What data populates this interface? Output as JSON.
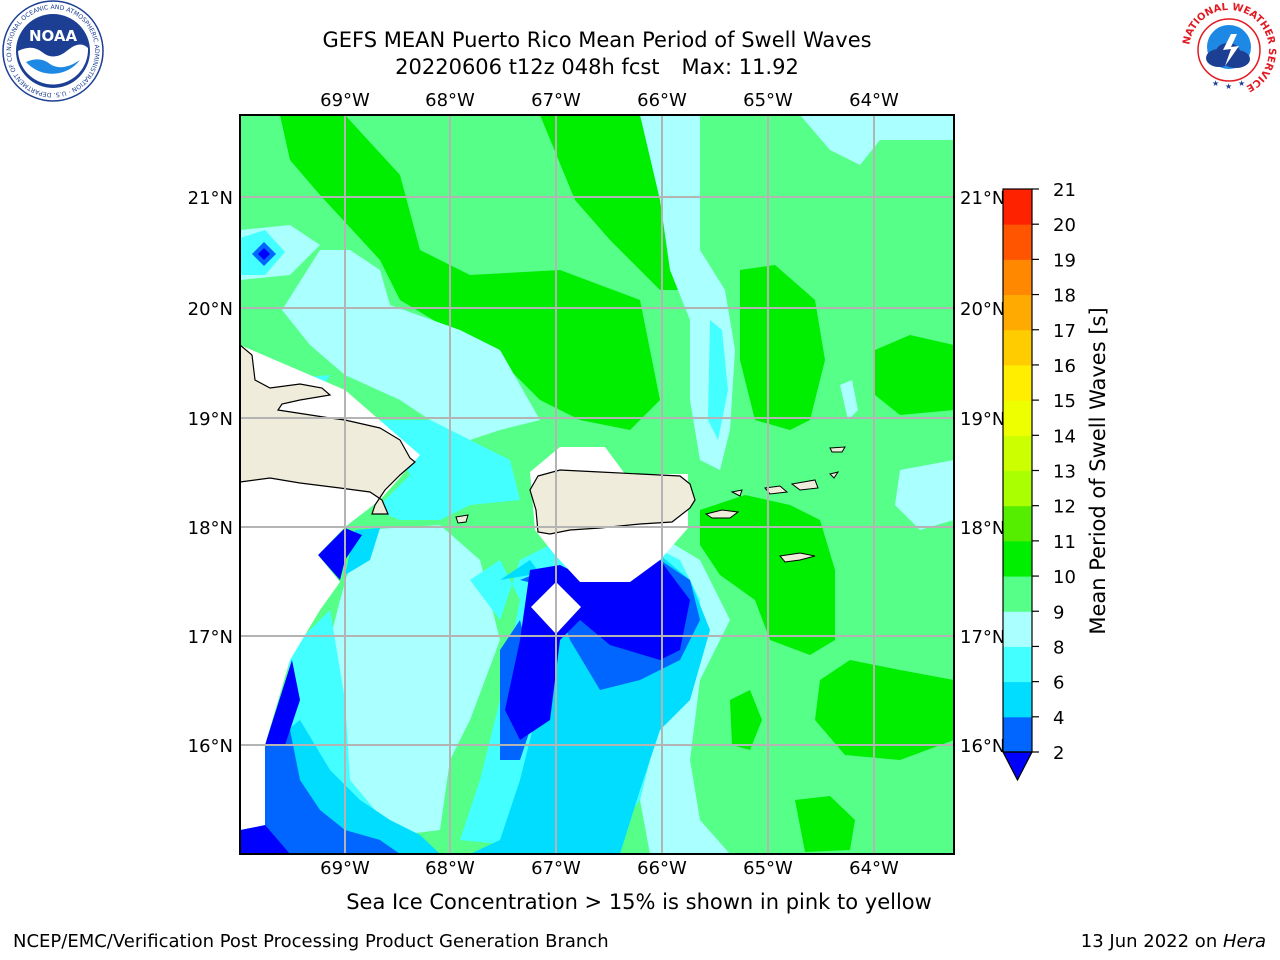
{
  "title": {
    "line1": "GEFS MEAN Puerto Rico Mean Period of Swell Waves",
    "date": "20220606 t12z 048h fcst",
    "max": "Max: 11.92"
  },
  "caption": "Sea Ice Concentration > 15% is shown in pink to yellow",
  "footer": {
    "left": "NCEP/EMC/Verification Post Processing Product Generation Branch",
    "date": "13 Jun 2022 on ",
    "host": "Hera"
  },
  "logos": {
    "noaa_text": "NOAA",
    "noaa_ring": "NATIONAL OCEANIC AND ATMOSPHERIC ADMINISTRATION · U.S. DEPARTMENT OF COMMERCE",
    "nws_ring": "NATIONAL WEATHER SERVICE"
  },
  "map": {
    "lon_labels": [
      "69°W",
      "68°W",
      "67°W",
      "66°W",
      "65°W",
      "64°W"
    ],
    "lat_labels": [
      "21°N",
      "20°N",
      "19°N",
      "18°N",
      "17°N",
      "16°N"
    ],
    "colors": {
      "land": "#efecdc",
      "masked": "#ffffff",
      "grid": "#b4b4b4"
    }
  },
  "colorbar": {
    "label": "Mean Period of Swell Waves [s]",
    "ticks": [
      "2",
      "4",
      "6",
      "8",
      "9",
      "10",
      "11",
      "12",
      "13",
      "14",
      "15",
      "16",
      "17",
      "18",
      "19",
      "20",
      "21"
    ],
    "colors": [
      "#0066ff",
      "#00ddff",
      "#44ffff",
      "#aaffff",
      "#55ff88",
      "#00ee00",
      "#55ee00",
      "#aaff00",
      "#ccff00",
      "#eeff00",
      "#ffee00",
      "#ffcc00",
      "#ffaa00",
      "#ff8800",
      "#ff5500",
      "#ff2200"
    ],
    "extend_color": "#0000ff"
  }
}
